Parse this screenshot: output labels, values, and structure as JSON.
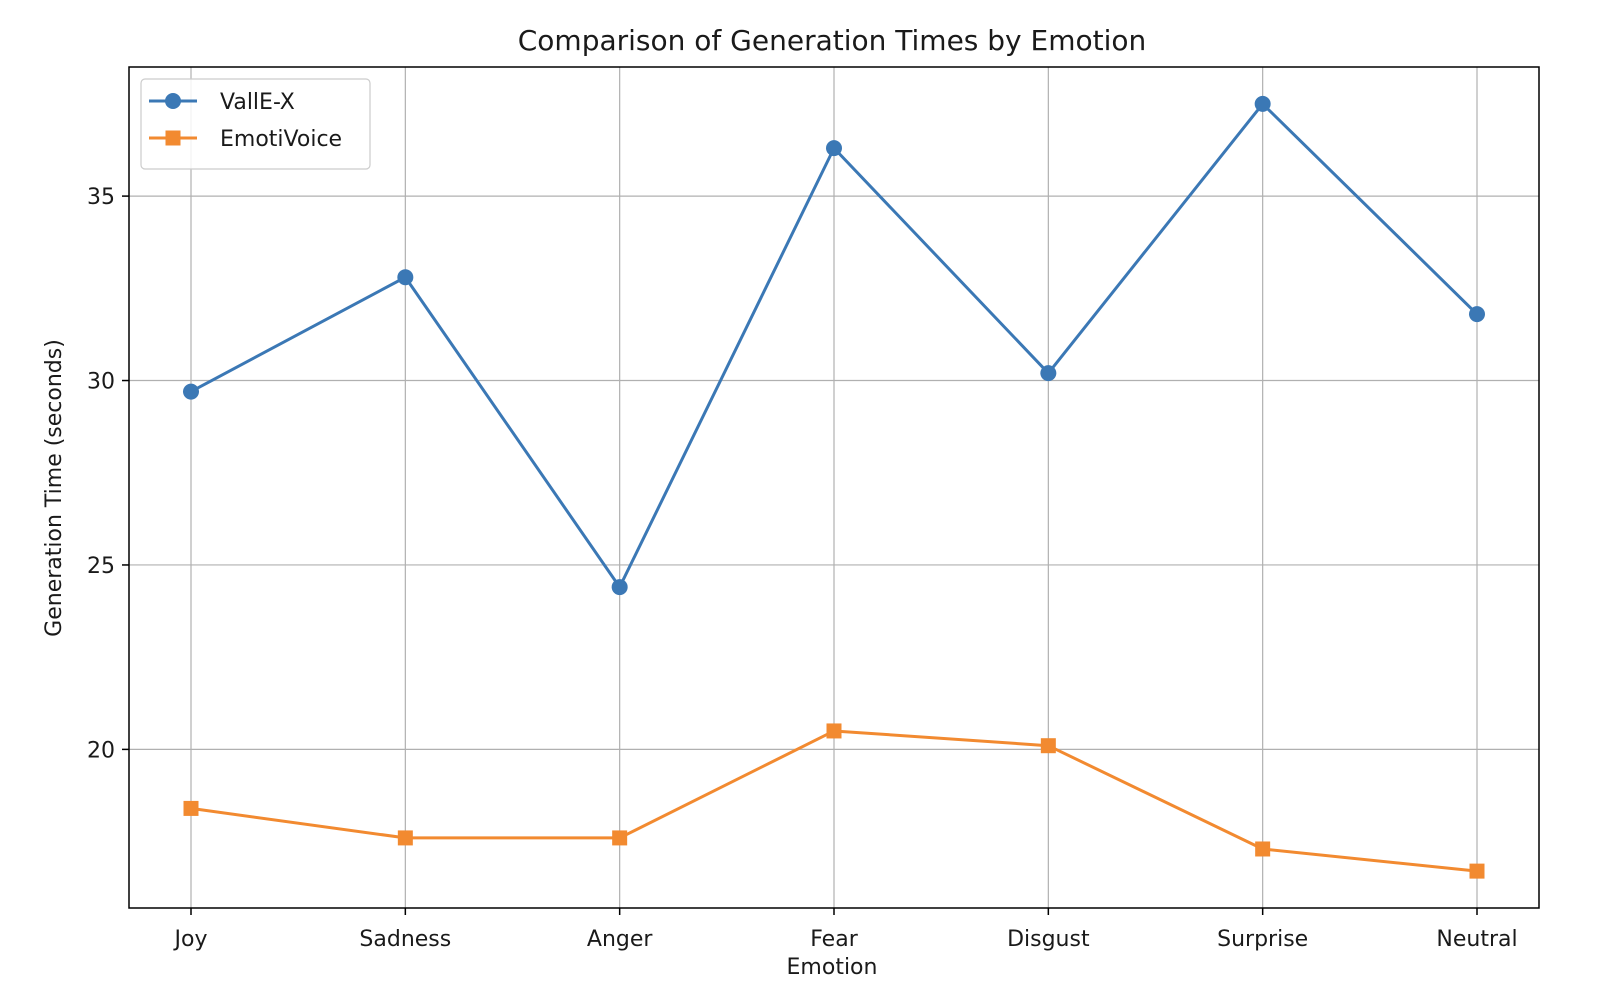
{
  "chart_data": {
    "type": "line",
    "title": "Comparison of Generation Times by Emotion",
    "xlabel": "Emotion",
    "ylabel": "Generation Time (seconds)",
    "categories": [
      "Joy",
      "Sadness",
      "Anger",
      "Fear",
      "Disgust",
      "Surprise",
      "Neutral"
    ],
    "ylim": [
      15.7,
      38.5
    ],
    "yticks": [
      20,
      25,
      30,
      35
    ],
    "grid": true,
    "legend_position": "top-left",
    "series": [
      {
        "name": "VallE-X",
        "values": [
          29.7,
          32.8,
          24.4,
          36.3,
          30.2,
          37.5,
          31.8
        ],
        "color": "#3b78b5",
        "marker": "circle"
      },
      {
        "name": "EmotiVoice",
        "values": [
          18.4,
          17.6,
          17.6,
          20.5,
          20.1,
          17.3,
          16.7
        ],
        "color": "#f28a30",
        "marker": "square"
      }
    ]
  }
}
